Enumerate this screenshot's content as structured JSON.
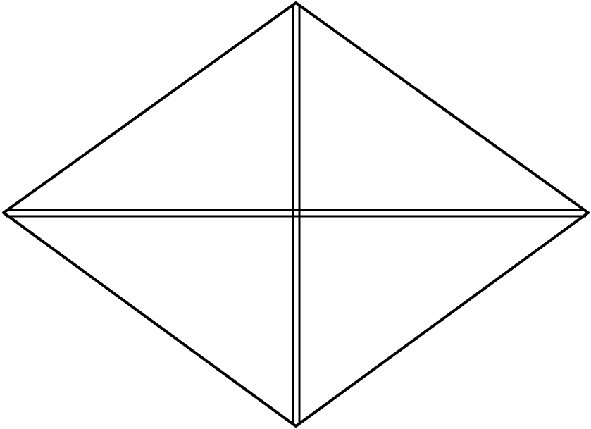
{
  "diagram": {
    "shape": "rhombus",
    "diagonals": "double-line",
    "line_color": "#000000",
    "background": "#ffffff"
  }
}
